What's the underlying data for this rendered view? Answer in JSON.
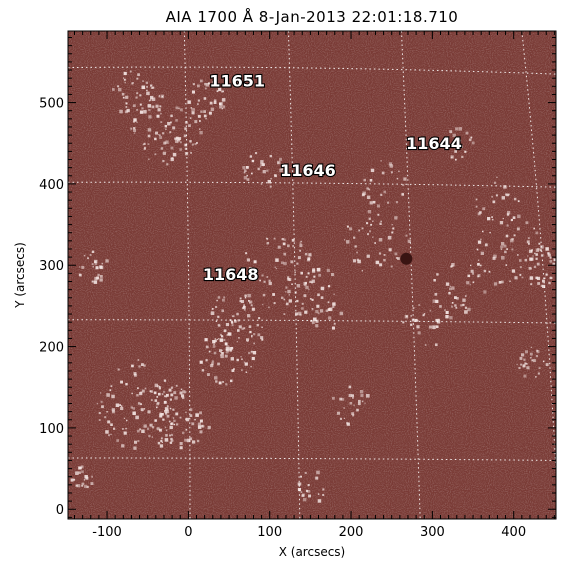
{
  "title": "AIA 1700 Å   8-Jan-2013 22:01:18.710",
  "x_axis": {
    "label": "X (arcsecs)",
    "range": [
      -148,
      452
    ],
    "ticks": [
      -100,
      0,
      100,
      200,
      300,
      400
    ],
    "tick_labels": [
      "-100",
      "0",
      "100",
      "200",
      "300",
      "400"
    ]
  },
  "y_axis": {
    "label": "Y (arcsecs)",
    "range": [
      -12,
      588
    ],
    "ticks": [
      0,
      100,
      200,
      300,
      400,
      500
    ],
    "tick_labels": [
      "0",
      "100",
      "200",
      "300",
      "400",
      "500"
    ]
  },
  "regions": [
    {
      "id": "11651",
      "label": "11651",
      "x": 60,
      "y": 520
    },
    {
      "id": "11646",
      "label": "11646",
      "x": 147,
      "y": 410
    },
    {
      "id": "11644",
      "label": "11644",
      "x": 302,
      "y": 443
    },
    {
      "id": "11648",
      "label": "11648",
      "x": 52,
      "y": 282
    }
  ],
  "sunspot": {
    "x": 268,
    "y": 308
  },
  "image": {
    "colormap": "sdoaia1700",
    "background_color": "#7a3b36",
    "bright_color": "#f4e6e4",
    "dark_color": "#3a1412"
  }
}
